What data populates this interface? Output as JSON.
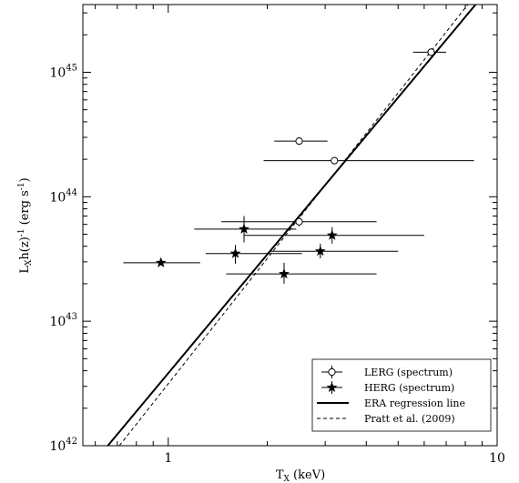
{
  "chart_data": {
    "type": "scatter",
    "xlabel": {
      "main": "T",
      "sub": "X",
      "rest": " (keV)"
    },
    "ylabel": {
      "main": "L",
      "sub": "X",
      "mid": "h(z)",
      "sup": "-1",
      "rest": " (erg s",
      "sup2": "-1",
      "end": ")"
    },
    "x_scale": "log",
    "y_scale": "log",
    "xlim": [
      0.55,
      10
    ],
    "ylim": [
      1e+42,
      3.5e+45
    ],
    "x_ticks": [
      {
        "value": 1,
        "label": "1"
      },
      {
        "value": 10,
        "label": "10"
      }
    ],
    "y_ticks": [
      {
        "value": 1e+42,
        "base": "10",
        "exp": "42"
      },
      {
        "value": 1e+43,
        "base": "10",
        "exp": "43"
      },
      {
        "value": 1e+44,
        "base": "10",
        "exp": "44"
      },
      {
        "value": 1e+45,
        "base": "10",
        "exp": "45"
      }
    ],
    "grid": false,
    "legend_position": "bottom-right",
    "series": [
      {
        "name": "LERG (spectrum)",
        "marker": "circle",
        "points": [
          {
            "x": 2.5,
            "y": 2.8e+44,
            "xerr": [
              2.1,
              3.05
            ]
          },
          {
            "x": 3.2,
            "y": 1.95e+44,
            "xerr": [
              1.95,
              8.5
            ],
            "yerr": [
              1.85e+44,
              2.05e+44
            ]
          },
          {
            "x": 2.5,
            "y": 6.3e+43,
            "xerr": [
              1.45,
              4.3
            ],
            "yerr": [
              5.8e+43,
              6.8e+43
            ]
          },
          {
            "x": 6.3,
            "y": 1.45e+45,
            "xerr": [
              5.55,
              7.0
            ],
            "yerr": [
              1.36e+45,
              1.55e+45
            ]
          }
        ]
      },
      {
        "name": "HERG (spectrum)",
        "marker": "star",
        "points": [
          {
            "x": 0.95,
            "y": 2.95e+43,
            "xerr": [
              0.73,
              1.25
            ]
          },
          {
            "x": 1.7,
            "y": 5.5e+43,
            "xerr": [
              1.2,
              2.45
            ],
            "yerr": [
              4.3e+43,
              7e+43
            ]
          },
          {
            "x": 1.6,
            "y": 3.5e+43,
            "xerr": [
              1.3,
              2.55
            ],
            "yerr": [
              2.9e+43,
              4.1e+43
            ]
          },
          {
            "x": 2.9,
            "y": 3.65e+43,
            "xerr": [
              2.05,
              5.0
            ],
            "yerr": [
              3.2e+43,
              4.2e+43
            ]
          },
          {
            "x": 3.15,
            "y": 4.9e+43,
            "xerr": [
              1.7,
              6.0
            ],
            "yerr": [
              4.2e+43,
              5.7e+43
            ]
          },
          {
            "x": 2.25,
            "y": 2.4e+43,
            "xerr": [
              1.5,
              4.3
            ],
            "yerr": [
              2e+43,
              2.95e+43
            ]
          }
        ]
      },
      {
        "name": "ERA regression line",
        "marker": "line-solid",
        "line": [
          {
            "x": 0.655,
            "y": 1e+42
          },
          {
            "x": 8.6,
            "y": 3.5e+45
          }
        ]
      },
      {
        "name": "Pratt et al. (2009)",
        "marker": "line-dashed",
        "line": [
          {
            "x": 0.71,
            "y": 1e+42
          },
          {
            "x": 8.15,
            "y": 3.5e+45
          }
        ]
      }
    ]
  }
}
